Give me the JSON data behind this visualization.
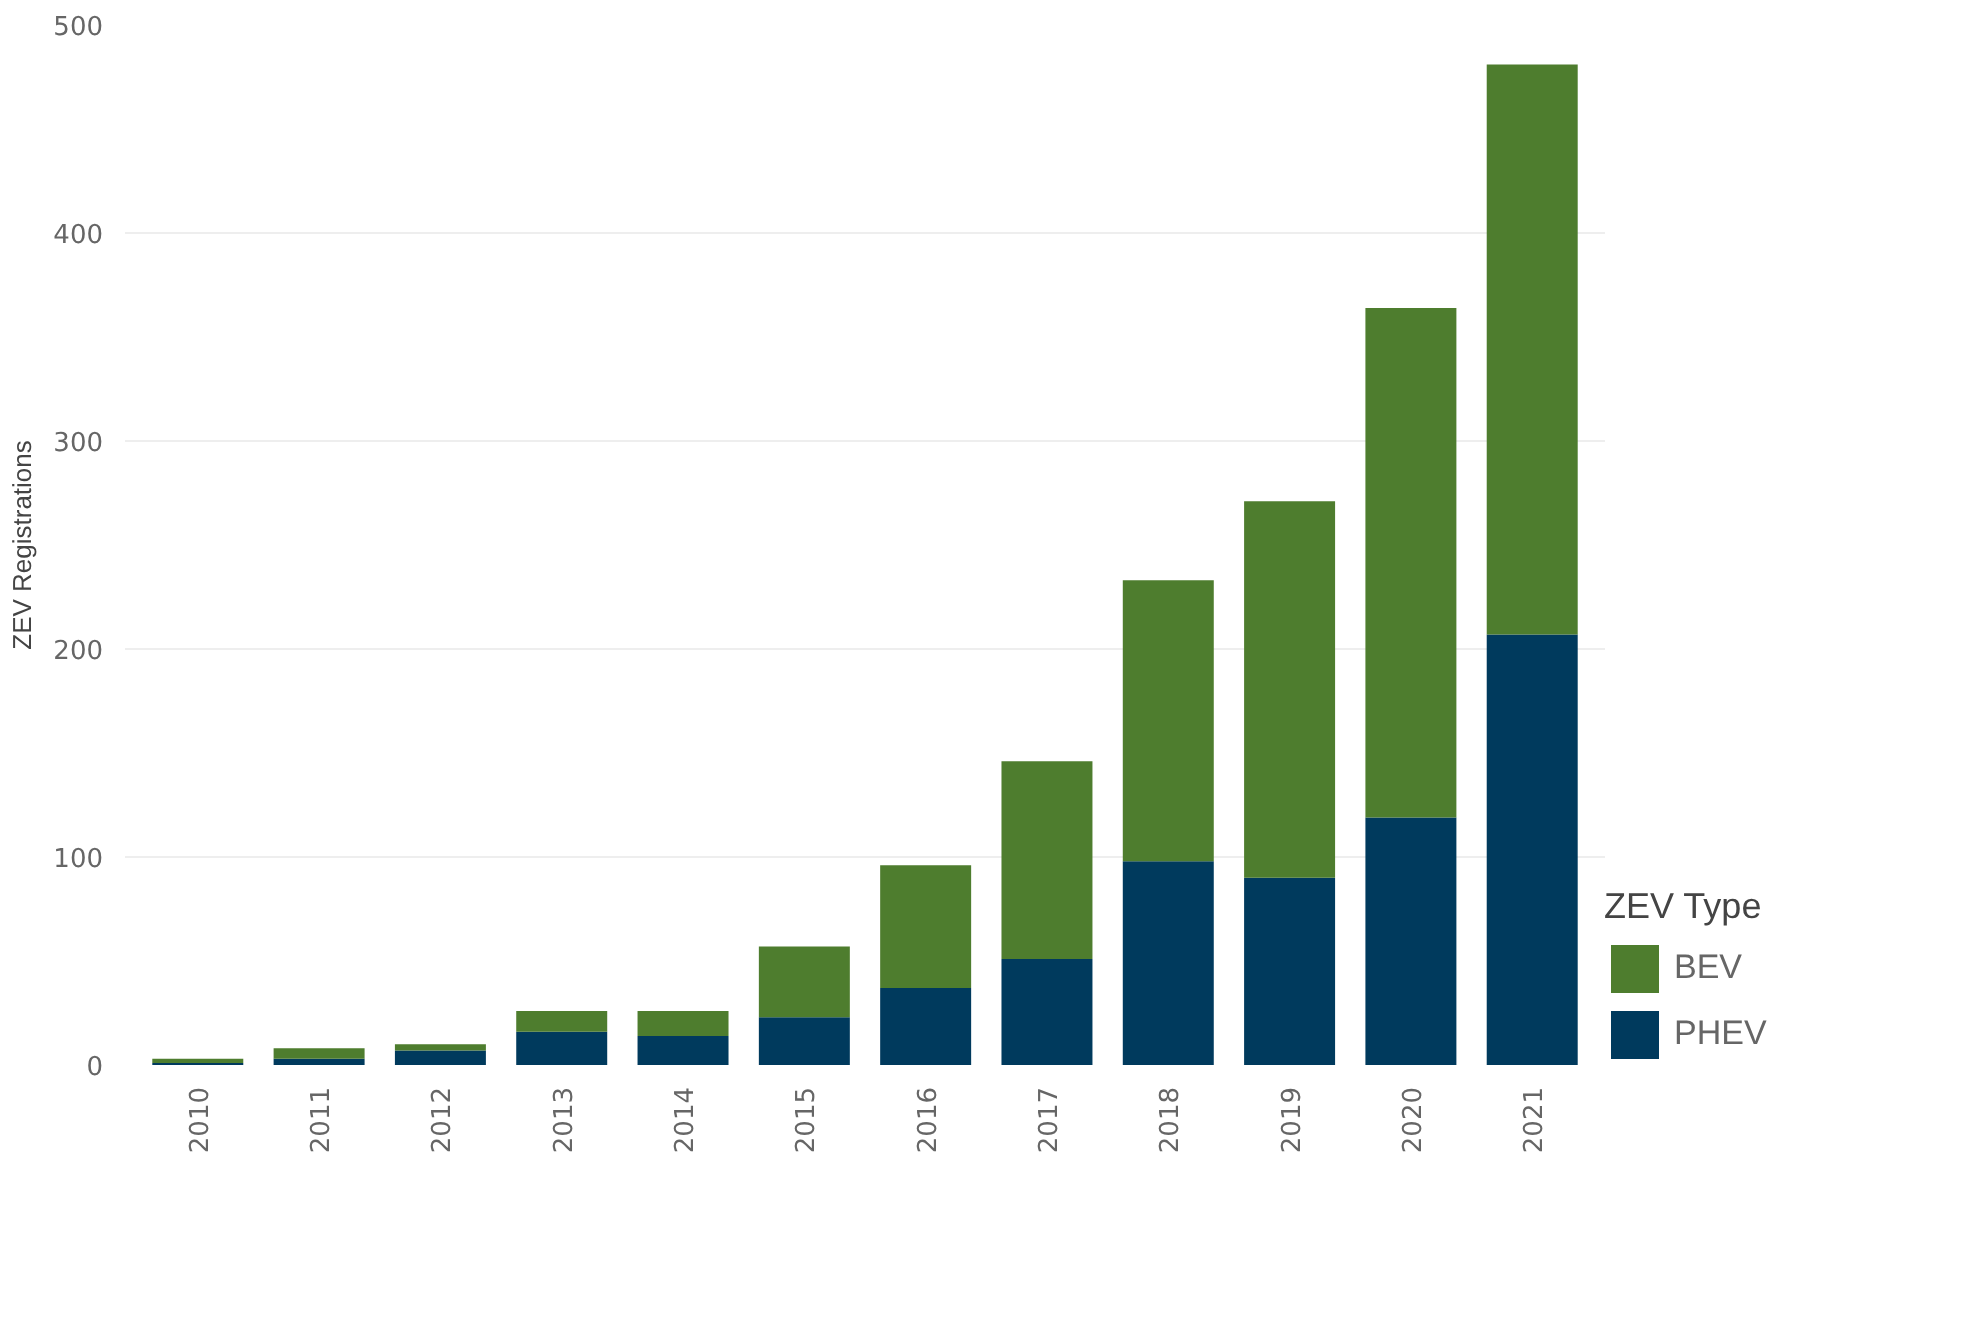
{
  "chart_data": {
    "type": "bar",
    "stacked": true,
    "ylabel": "ZEV Registrations",
    "legend_title": "ZEV Type",
    "legend": "bottom right",
    "grid": "y",
    "categories": [
      "2010",
      "2011",
      "2012",
      "2013",
      "2014",
      "2015",
      "2016",
      "2017",
      "2018",
      "2019",
      "2020",
      "2021"
    ],
    "ylim": [
      0,
      500
    ],
    "yticks": [
      0,
      100,
      200,
      300,
      400,
      500
    ],
    "series": [
      {
        "name": "PHEV",
        "color": "#003a5d",
        "values": [
          1,
          3,
          7,
          16,
          14,
          23,
          37,
          51,
          98,
          90,
          119,
          207
        ]
      },
      {
        "name": "BEV",
        "color": "#4e7d2e",
        "values": [
          2,
          5,
          3,
          10,
          12,
          34,
          59,
          95,
          135,
          181,
          245,
          274
        ]
      }
    ]
  }
}
